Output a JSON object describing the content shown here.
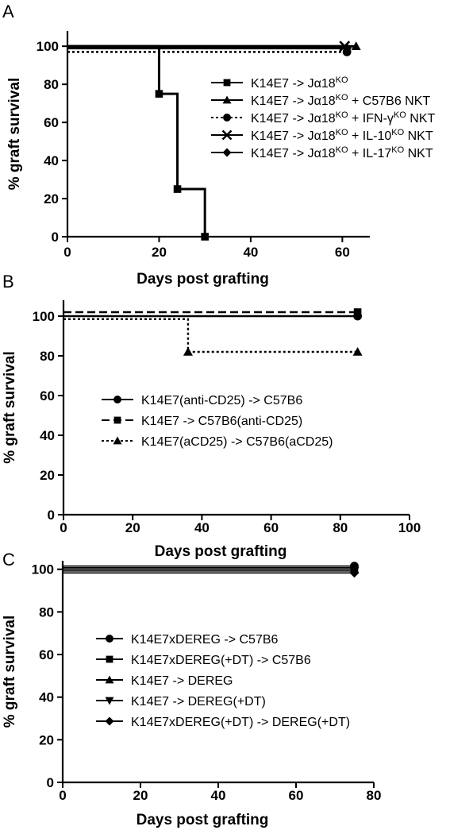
{
  "chart_data": [
    {
      "type": "line",
      "panel_label": "A",
      "xlabel": "Days post grafting",
      "ylabel": "% graft survival",
      "xlim": [
        0,
        66
      ],
      "ylim": [
        0,
        108
      ],
      "xticks": [
        0,
        20,
        40,
        60
      ],
      "yticks": [
        0,
        20,
        40,
        60,
        80,
        100
      ],
      "grid": false,
      "legend_position": "right",
      "series": [
        {
          "name": "K14E7 -> Jα18KO",
          "label_parts": [
            "K14E7 -> Jα18",
            "KO",
            ""
          ],
          "marker": "square",
          "dash": "solid",
          "x": [
            0,
            20,
            20,
            24,
            24,
            30,
            30
          ],
          "y": [
            100,
            100,
            75,
            75,
            25,
            25,
            0
          ],
          "marker_points": [
            [
              20,
              75
            ],
            [
              24,
              25
            ],
            [
              30,
              0
            ]
          ]
        },
        {
          "name": "K14E7 -> Jα18KO + C57B6 NKT",
          "label_parts": [
            "K14E7 -> Jα18",
            "KO",
            " + C57B6 NKT"
          ],
          "marker": "triangle",
          "dash": "solid",
          "x": [
            0,
            63
          ],
          "y": [
            100,
            100
          ],
          "marker_points": [
            [
              63,
              100
            ]
          ]
        },
        {
          "name": "K14E7 -> Jα18KO + IFN-γKO NKT",
          "label_parts": [
            "K14E7 -> Jα18",
            "KO",
            " + IFN-γ",
            "KO",
            " NKT"
          ],
          "marker": "circle",
          "dash": "dotted",
          "x": [
            0,
            61
          ],
          "y": [
            97,
            97
          ],
          "marker_points": [
            [
              61,
              97
            ]
          ]
        },
        {
          "name": "K14E7 -> Jα18KO + IL-10KO NKT",
          "label_parts": [
            "K14E7 -> Jα18",
            "KO",
            " + IL-10",
            "KO",
            " NKT"
          ],
          "marker": "x",
          "dash": "solid",
          "x": [
            0,
            60.5
          ],
          "y": [
            100,
            100
          ],
          "marker_points": [
            [
              60.5,
              100
            ]
          ]
        },
        {
          "name": "K14E7 -> Jα18KO + IL-17KO NKT",
          "label_parts": [
            "K14E7 -> Jα18",
            "KO",
            " + IL-17",
            "KO",
            " NKT"
          ],
          "marker": "diamond",
          "dash": "solid",
          "x": [
            0,
            61
          ],
          "y": [
            99,
            99
          ],
          "marker_points": [
            [
              61,
              99
            ]
          ]
        }
      ]
    },
    {
      "type": "line",
      "panel_label": "B",
      "xlabel": "Days post grafting",
      "ylabel": "% graft survival",
      "xlim": [
        0,
        100
      ],
      "ylim": [
        0,
        108
      ],
      "xticks": [
        0,
        20,
        40,
        60,
        80,
        100
      ],
      "yticks": [
        0,
        20,
        40,
        60,
        80,
        100
      ],
      "grid": false,
      "legend_position": "center",
      "series": [
        {
          "name": "K14E7(anti-CD25) -> C57B6",
          "label_parts": [
            "K14E7(anti-CD25) -> C57B6"
          ],
          "marker": "circle",
          "dash": "solid",
          "x": [
            0,
            85
          ],
          "y": [
            100,
            100
          ],
          "marker_points": [
            [
              85,
              100
            ]
          ]
        },
        {
          "name": "K14E7 -> C57B6(anti-CD25)",
          "label_parts": [
            "K14E7 -> C57B6(anti-CD25)"
          ],
          "marker": "square",
          "dash": "dashed",
          "x": [
            0,
            85
          ],
          "y": [
            102,
            102
          ],
          "marker_points": [
            [
              85,
              102
            ]
          ]
        },
        {
          "name": "K14E7(aCD25) -> C57B6(aCD25)",
          "label_parts": [
            "K14E7(aCD25) -> C57B6(aCD25)"
          ],
          "marker": "triangle",
          "dash": "dotted",
          "x": [
            0,
            36,
            36,
            85
          ],
          "y": [
            98.5,
            98.5,
            82,
            82
          ],
          "marker_points": [
            [
              36,
              82
            ],
            [
              85,
              82
            ]
          ]
        }
      ]
    },
    {
      "type": "line",
      "panel_label": "C",
      "xlabel": "Days post grafting",
      "ylabel": "% graft survival",
      "xlim": [
        0,
        80
      ],
      "ylim": [
        0,
        104
      ],
      "xticks": [
        0,
        20,
        40,
        60,
        80
      ],
      "yticks": [
        0,
        20,
        40,
        60,
        80,
        100
      ],
      "grid": false,
      "legend_position": "center",
      "series": [
        {
          "name": "K14E7xDEREG -> C57B6",
          "label_parts": [
            "K14E7xDEREG -> C57B6"
          ],
          "marker": "circle",
          "dash": "solid",
          "x": [
            0,
            75
          ],
          "y": [
            101.5,
            101.5
          ],
          "marker_points": [
            [
              75,
              101.5
            ]
          ]
        },
        {
          "name": "K14E7xDEREG(+DT) -> C57B6",
          "label_parts": [
            "K14E7xDEREG(+DT) -> C57B6"
          ],
          "marker": "square",
          "dash": "solid",
          "x": [
            0,
            75
          ],
          "y": [
            100.7,
            100.7
          ],
          "marker_points": [
            [
              75,
              100.7
            ]
          ]
        },
        {
          "name": "K14E7 -> DEREG",
          "label_parts": [
            "K14E7 -> DEREG"
          ],
          "marker": "triangle",
          "dash": "solid",
          "x": [
            0,
            75
          ],
          "y": [
            100,
            100
          ],
          "marker_points": [
            [
              75,
              100
            ]
          ]
        },
        {
          "name": "K14E7 -> DEREG(+DT)",
          "label_parts": [
            "K14E7 -> DEREG(+DT)"
          ],
          "marker": "triangle-down",
          "dash": "solid",
          "x": [
            0,
            75
          ],
          "y": [
            99.2,
            99.2
          ],
          "marker_points": [
            [
              75,
              99.2
            ]
          ]
        },
        {
          "name": "K14E7xDEREG(+DT) -> DEREG(+DT)",
          "label_parts": [
            "K14E7xDEREG(+DT) -> DEREG(+DT)"
          ],
          "marker": "diamond",
          "dash": "solid",
          "x": [
            0,
            75
          ],
          "y": [
            98.3,
            98.3
          ],
          "marker_points": [
            [
              75,
              98.3
            ]
          ]
        }
      ]
    }
  ]
}
